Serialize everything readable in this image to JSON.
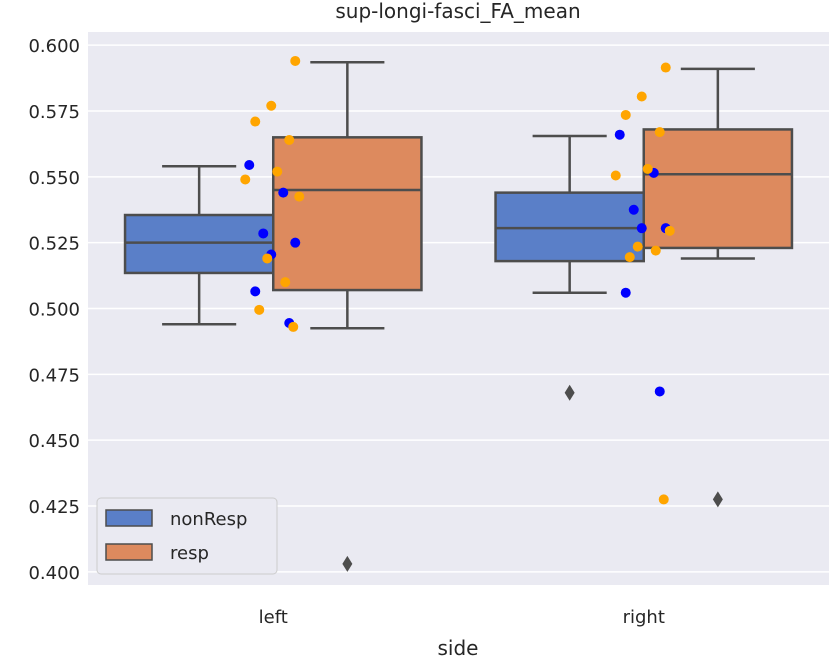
{
  "chart_data": {
    "type": "box",
    "title": "sup-longi-fasci_FA_mean",
    "xlabel": "side",
    "ylabel": "",
    "categories": [
      "left",
      "right"
    ],
    "ylim": [
      0.395,
      0.605
    ],
    "yticks": [
      "0.400",
      "0.425",
      "0.450",
      "0.475",
      "0.500",
      "0.525",
      "0.550",
      "0.575",
      "0.600"
    ],
    "grid": true,
    "legend_position": "lower-left",
    "series": [
      {
        "name": "nonResp",
        "box_color": "#5a7fc8",
        "point_color": "#0000ff",
        "boxes": [
          {
            "category": "left",
            "whisker_low": 0.494,
            "q1": 0.5135,
            "median": 0.525,
            "q3": 0.5355,
            "whisker_high": 0.554,
            "outliers": []
          },
          {
            "category": "right",
            "whisker_low": 0.506,
            "q1": 0.518,
            "median": 0.5305,
            "q3": 0.544,
            "whisker_high": 0.5655,
            "outliers": [
              0.468
            ]
          }
        ],
        "points": [
          {
            "category": "left",
            "values": [
              0.5545,
              0.544,
              0.5285,
              0.525,
              0.5205,
              0.5065,
              0.4945
            ]
          },
          {
            "category": "right",
            "values": [
              0.566,
              0.5515,
              0.5375,
              0.5305,
              0.5305,
              0.506,
              0.4685
            ]
          }
        ]
      },
      {
        "name": "resp",
        "box_color": "#dd8a5e",
        "point_color": "#ffa500",
        "boxes": [
          {
            "category": "left",
            "whisker_low": 0.4925,
            "q1": 0.507,
            "median": 0.545,
            "q3": 0.565,
            "whisker_high": 0.5935,
            "outliers": [
              0.403
            ]
          },
          {
            "category": "right",
            "whisker_low": 0.519,
            "q1": 0.523,
            "median": 0.551,
            "q3": 0.568,
            "whisker_high": 0.591,
            "outliers": [
              0.4275
            ]
          }
        ],
        "points": [
          {
            "category": "left",
            "values": [
              0.594,
              0.577,
              0.571,
              0.564,
              0.552,
              0.549,
              0.5425,
              0.519,
              0.51,
              0.4995,
              0.493,
              0.403
            ]
          },
          {
            "category": "right",
            "values": [
              0.5915,
              0.5805,
              0.5735,
              0.567,
              0.553,
              0.5505,
              0.5295,
              0.5235,
              0.522,
              0.5195,
              0.4275
            ]
          }
        ]
      }
    ]
  }
}
